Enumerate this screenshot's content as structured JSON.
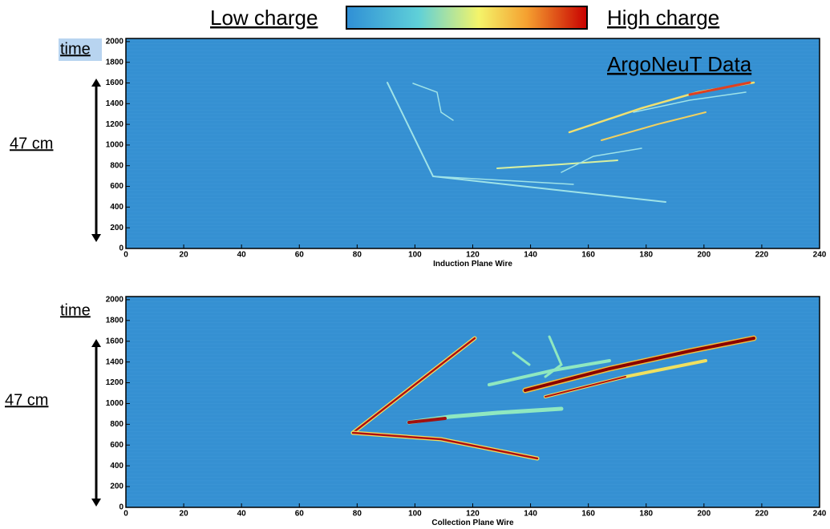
{
  "colorbar": {
    "low_label": "Low charge",
    "high_label": "High charge"
  },
  "chart_data": [
    {
      "type": "heatmap",
      "annotation": "ArgoNeuT Data",
      "y_label": "time",
      "scale_label": "47 cm",
      "x_label": "Induction Plane Wire",
      "xlim": [
        0,
        240
      ],
      "ylim": [
        0,
        2030
      ],
      "xticks": [
        0,
        20,
        40,
        60,
        80,
        100,
        120,
        140,
        160,
        180,
        200,
        220,
        240
      ],
      "yticks": [
        0,
        200,
        400,
        600,
        800,
        1000,
        1200,
        1400,
        1600,
        1800,
        2000
      ]
    },
    {
      "type": "heatmap",
      "y_label": "time",
      "scale_label": "47 cm",
      "x_label": "Collection Plane Wire",
      "xlim": [
        0,
        240
      ],
      "ylim": [
        0,
        2030
      ],
      "xticks": [
        0,
        20,
        40,
        60,
        80,
        100,
        120,
        140,
        160,
        180,
        200,
        220,
        240
      ],
      "yticks": [
        0,
        200,
        400,
        600,
        800,
        1000,
        1200,
        1400,
        1600,
        1800,
        2000
      ]
    }
  ]
}
